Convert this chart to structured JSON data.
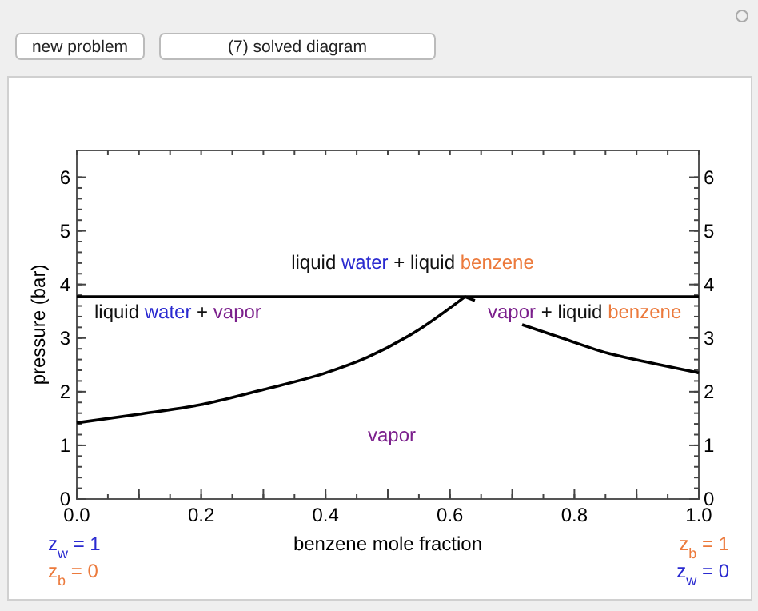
{
  "chart_data": {
    "type": "line",
    "xlabel": "benzene mole fraction",
    "ylabel": "pressure (bar)",
    "xlim": [
      0,
      1
    ],
    "ylim": [
      0,
      6.5
    ],
    "y2lim": [
      0,
      6.5
    ],
    "xticks": [
      {
        "value": 0,
        "label": "0.0"
      },
      {
        "value": 0.1,
        "label": null
      },
      {
        "value": 0.2,
        "label": "0.2"
      },
      {
        "value": 0.3,
        "label": null
      },
      {
        "value": 0.4,
        "label": "0.4"
      },
      {
        "value": 0.5,
        "label": null
      },
      {
        "value": 0.6,
        "label": "0.6"
      },
      {
        "value": 0.7,
        "label": null
      },
      {
        "value": 0.8,
        "label": "0.8"
      },
      {
        "value": 0.9,
        "label": null
      },
      {
        "value": 1,
        "label": "1.0"
      }
    ],
    "yticks": [
      0,
      1,
      2,
      3,
      4,
      5,
      6
    ],
    "y2ticks": [
      0,
      1,
      2,
      3,
      4,
      5,
      6
    ],
    "grid": false,
    "marker": "none",
    "line_style": "solid",
    "series": [
      {
        "color": "#000000",
        "x": [
          0,
          1
        ],
        "values": [
          3.77,
          3.77
        ]
      },
      {
        "color": "#000000",
        "x": [
          0,
          0.1,
          0.2,
          0.3,
          0.4,
          0.467,
          0.553,
          0.624
        ],
        "values": [
          1.42,
          1.58,
          1.76,
          2.04,
          2.35,
          2.64,
          3.18,
          3.77
        ]
      },
      {
        "color": "#000000",
        "x": [
          0.624,
          0.64,
          0.67,
          0.716,
          0.78,
          0.853,
          0.93,
          1.0
        ],
        "values": [
          3.77,
          3.7,
          null,
          3.25,
          3.0,
          2.72,
          2.52,
          2.35
        ]
      }
    ],
    "annotations": [
      "liquid water + liquid benzene",
      "liquid water + vapor",
      "vapor + liquid benzene",
      "vapor",
      "z$_{w}$ = 1",
      "z$_{b}$ = 0",
      "z$_{b}$ = 1",
      "z$_{w}$ = 0",
      "new problem",
      "(7) solved diagram"
    ]
  }
}
